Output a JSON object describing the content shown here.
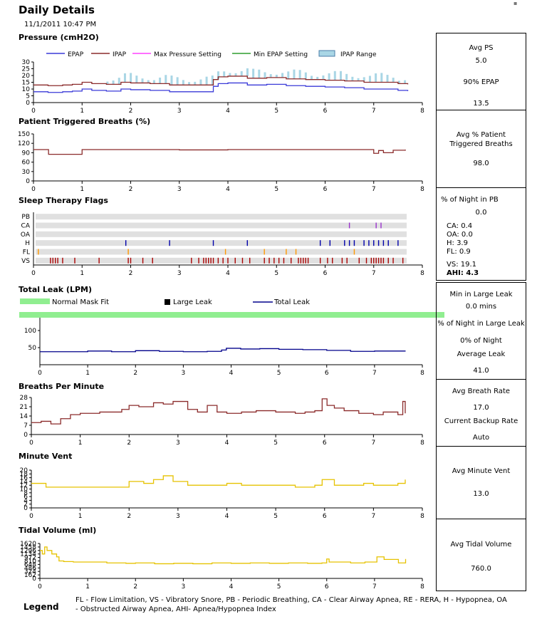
{
  "header": {
    "title": "Daily Details",
    "datetime": "11/1/2011 10:47 PM"
  },
  "sections": {
    "pressure": "Pressure (cmH2O)",
    "ptb": "Patient Triggered Breaths (%)",
    "flags": "Sleep Therapy Flags",
    "leak": "Total Leak (LPM)",
    "bpm": "Breaths Per Minute",
    "mv": "Minute Vent",
    "tv": "Tidal Volume (ml)"
  },
  "stats": {
    "pressure": {
      "avg_ps_label": "Avg PS",
      "avg_ps": "5.0",
      "epap90_label": "90% EPAP",
      "epap90": "13.5"
    },
    "ptb": {
      "label_1": "Avg % Patient",
      "label_2": "Triggered Breaths",
      "value": "98.0"
    },
    "flags": {
      "pb_label": "% of Night in PB",
      "pb": "0.0",
      "ca": "CA:  0.4",
      "oa": "OA:  0.0",
      "h": "H:    3.9",
      "fl": "FL:   0.9",
      "vs": "VS:  19.1",
      "ahi_label": "AHI:",
      "ahi": "4.3"
    },
    "leak": {
      "large_label": "Min in Large Leak",
      "large": "0.0 mins",
      "pct_label": "% of Night in Large Leak",
      "pct": "0% of Night",
      "avg_label": "Average Leak",
      "avg": "41.0"
    },
    "bpm": {
      "avg_label": "Avg Breath Rate",
      "avg": "17.0",
      "backup_label": "Current Backup Rate",
      "backup": "Auto"
    },
    "mv": {
      "label": "Avg Minute Vent",
      "value": "13.0"
    },
    "tv": {
      "label": "Avg Tidal Volume",
      "value": "760.0"
    }
  },
  "legend": {
    "label": "Legend",
    "text": "FL - Flow Limitation, VS - Vibratory Snore, PB - Periodic Breathing, CA - Clear Airway Apnea, RE - RERA, H - Hypopnea, OA - Obstructed Airway Apnea, AHI- Apnea/Hypopnea Index"
  },
  "chart_data": [
    {
      "id": "pressure",
      "type": "line",
      "xlim": [
        0,
        8
      ],
      "xticks": [
        0,
        1,
        2,
        3,
        4,
        5,
        6,
        7,
        8
      ],
      "ylim": [
        0,
        30
      ],
      "yticks": [
        0,
        5,
        10,
        15,
        20,
        25,
        30
      ],
      "legend": [
        "EPAP",
        "IPAP",
        "Max Pressure Setting",
        "Min EPAP Setting",
        "IPAP Range"
      ],
      "colors": {
        "EPAP": "#3a3ad8",
        "IPAP": "#8b2b2b",
        "Max Pressure Setting": "#ff40ff",
        "Min EPAP Setting": "#2e9e2e",
        "IPAP Range": "#a9d6e5"
      },
      "series": [
        {
          "name": "EPAP",
          "x": [
            0,
            0.3,
            0.6,
            0.8,
            1.0,
            1.2,
            1.5,
            1.8,
            2.0,
            2.4,
            2.8,
            3.2,
            3.6,
            3.7,
            3.8,
            4.0,
            4.4,
            4.8,
            5.2,
            5.6,
            6.0,
            6.4,
            6.8,
            7.2,
            7.5,
            7.7
          ],
          "y": [
            8,
            7.5,
            8,
            8.5,
            10,
            9,
            8.5,
            10,
            9.5,
            9,
            8,
            8,
            8,
            12,
            14,
            14.5,
            13,
            13.5,
            12.5,
            12,
            11.5,
            11,
            10,
            10,
            9,
            8.5
          ]
        },
        {
          "name": "IPAP",
          "x": [
            0,
            0.3,
            0.6,
            0.8,
            1.0,
            1.2,
            1.5,
            1.8,
            2.0,
            2.4,
            2.8,
            3.2,
            3.6,
            3.7,
            3.8,
            4.0,
            4.4,
            4.8,
            5.2,
            5.6,
            6.0,
            6.4,
            6.8,
            7.2,
            7.5,
            7.7
          ],
          "y": [
            13,
            12.5,
            13,
            13.5,
            15,
            14,
            13.5,
            15,
            14.5,
            14,
            13,
            13,
            13,
            17,
            19,
            19.5,
            18,
            18.5,
            17.5,
            17,
            16.5,
            16,
            15,
            15,
            14,
            13.5
          ]
        }
      ]
    },
    {
      "id": "ptb",
      "type": "line",
      "xlim": [
        0,
        8
      ],
      "xticks": [
        0,
        1,
        2,
        3,
        4,
        5,
        6,
        7,
        8
      ],
      "ylim": [
        0,
        150
      ],
      "yticks": [
        0,
        30,
        60,
        90,
        120,
        150
      ],
      "series": [
        {
          "name": "Patient Triggered Breaths",
          "x": [
            0,
            0.3,
            0.31,
            1,
            2,
            3,
            4,
            5,
            6,
            6.9,
            7.0,
            7.1,
            7.2,
            7.4,
            7.65
          ],
          "y": [
            100,
            100,
            85,
            100,
            100,
            99,
            100,
            100,
            100,
            100,
            88,
            97,
            90,
            98,
            100
          ]
        }
      ]
    },
    {
      "id": "flags",
      "type": "scatter",
      "xlim": [
        0,
        8
      ],
      "xticks": [
        0,
        1,
        2,
        3,
        4,
        5,
        6,
        7,
        8
      ],
      "rows": [
        "PB",
        "CA",
        "OA",
        "H",
        "FL",
        "VS"
      ],
      "events": {
        "CA": [
          6.5,
          7.05,
          7.15
        ],
        "H": [
          1.9,
          2.8,
          3.7,
          4.4,
          5.9,
          6.1,
          6.4,
          6.5,
          6.6,
          6.8,
          6.9,
          7.0,
          7.1,
          7.2,
          7.3,
          7.5
        ],
        "FL": [
          0.1,
          1.95,
          3.95,
          4.75,
          5.2,
          5.4,
          6.6
        ],
        "VS": [
          0.35,
          0.4,
          0.45,
          0.5,
          0.6,
          0.85,
          1.35,
          1.95,
          2.0,
          2.25,
          2.45,
          3.25,
          3.4,
          3.5,
          3.55,
          3.6,
          3.65,
          3.7,
          3.8,
          3.9,
          4.0,
          4.15,
          4.3,
          4.45,
          4.75,
          4.85,
          4.95,
          5.05,
          5.15,
          5.3,
          5.45,
          5.5,
          5.55,
          5.6,
          5.65,
          5.9,
          6.05,
          6.15,
          6.35,
          6.45,
          6.7,
          6.85,
          6.95,
          7.0,
          7.05,
          7.1,
          7.15,
          7.2,
          7.3,
          7.4,
          7.6
        ]
      }
    },
    {
      "id": "leak",
      "type": "line",
      "xlim": [
        0,
        8
      ],
      "xticks": [
        0,
        1,
        2,
        3,
        4,
        5,
        6,
        7,
        8
      ],
      "ylim": [
        0,
        150
      ],
      "yticks": [
        50,
        100
      ],
      "legend": [
        "Normal Mask Fit",
        "Large Leak",
        "Total Leak"
      ],
      "colors": {
        "Normal Mask Fit": "#90ee90",
        "Large Leak": "#000000",
        "Total Leak": "#00008b"
      },
      "series": [
        {
          "name": "Total Leak",
          "x": [
            0,
            0.5,
            1,
            1.5,
            2,
            2.5,
            3,
            3.5,
            3.8,
            3.9,
            4.2,
            4.6,
            5,
            5.5,
            6,
            6.5,
            7,
            7.65
          ],
          "y": [
            38,
            38,
            40,
            38,
            41,
            39,
            38,
            39,
            43,
            48,
            46,
            47,
            45,
            44,
            42,
            39,
            40,
            40
          ]
        }
      ]
    },
    {
      "id": "bpm",
      "type": "line",
      "xlim": [
        0,
        8
      ],
      "xticks": [
        0,
        1,
        2,
        3,
        4,
        5,
        6,
        7,
        8
      ],
      "ylim": [
        0,
        28
      ],
      "yticks": [
        0,
        7,
        14,
        21,
        28
      ],
      "series": [
        {
          "name": "Breaths Per Minute",
          "x": [
            0,
            0.2,
            0.4,
            0.6,
            0.8,
            1.0,
            1.4,
            1.7,
            1.85,
            2.0,
            2.2,
            2.5,
            2.7,
            2.9,
            3.2,
            3.4,
            3.6,
            3.8,
            4.0,
            4.3,
            4.6,
            5.0,
            5.4,
            5.6,
            5.8,
            5.95,
            6.05,
            6.2,
            6.4,
            6.7,
            7.0,
            7.2,
            7.5,
            7.6,
            7.65
          ],
          "y": [
            9,
            10,
            8,
            12,
            15,
            16,
            17,
            17,
            19,
            22,
            21,
            24,
            23,
            25,
            19,
            17,
            22,
            17,
            16,
            17,
            18,
            17,
            16,
            17,
            18,
            27,
            22,
            20,
            18,
            16,
            15,
            17,
            15,
            25,
            16
          ]
        }
      ]
    },
    {
      "id": "mv",
      "type": "line",
      "xlim": [
        0,
        8
      ],
      "xticks": [
        0,
        1,
        2,
        3,
        4,
        5,
        6,
        7,
        8
      ],
      "ylim": [
        0,
        20
      ],
      "yticks": [
        0,
        2,
        4,
        6,
        8,
        10,
        12,
        14,
        16,
        18,
        20
      ],
      "series": [
        {
          "name": "Minute Vent",
          "x": [
            0,
            0.3,
            0.6,
            1.0,
            1.4,
            1.8,
            2.0,
            2.3,
            2.5,
            2.7,
            2.9,
            3.2,
            3.5,
            3.8,
            4.0,
            4.3,
            4.6,
            5.0,
            5.4,
            5.8,
            5.95,
            6.2,
            6.5,
            6.8,
            7.0,
            7.3,
            7.5,
            7.65
          ],
          "y": [
            13,
            11,
            11,
            11,
            11,
            11,
            14,
            13,
            15,
            17,
            14,
            12,
            12,
            12,
            13,
            12,
            12,
            12,
            11,
            12,
            15,
            12,
            12,
            13,
            12,
            12,
            13,
            15
          ]
        }
      ]
    },
    {
      "id": "tv",
      "type": "line",
      "xlim": [
        0,
        8
      ],
      "xticks": [
        0,
        1,
        2,
        3,
        4,
        5,
        6,
        7,
        8
      ],
      "ylim": [
        0,
        1620
      ],
      "yticks": [
        0,
        162,
        324,
        486,
        648,
        810,
        972,
        1134,
        1296,
        1458,
        1620
      ],
      "series": [
        {
          "name": "Tidal Volume",
          "x": [
            0,
            0.05,
            0.1,
            0.15,
            0.25,
            0.35,
            0.4,
            0.5,
            0.7,
            1.0,
            1.4,
            1.8,
            2.0,
            2.4,
            2.8,
            3.2,
            3.6,
            4.0,
            4.4,
            4.8,
            5.2,
            5.6,
            5.9,
            6.0,
            6.05,
            6.2,
            6.5,
            6.8,
            7.0,
            7.05,
            7.2,
            7.5,
            7.6,
            7.65
          ],
          "y": [
            1296,
            1134,
            1458,
            1296,
            1134,
            1000,
            810,
            780,
            760,
            760,
            720,
            700,
            720,
            680,
            700,
            680,
            720,
            700,
            720,
            700,
            720,
            700,
            720,
            900,
            760,
            760,
            720,
            760,
            760,
            1000,
            880,
            720,
            720,
            900
          ]
        }
      ]
    }
  ]
}
